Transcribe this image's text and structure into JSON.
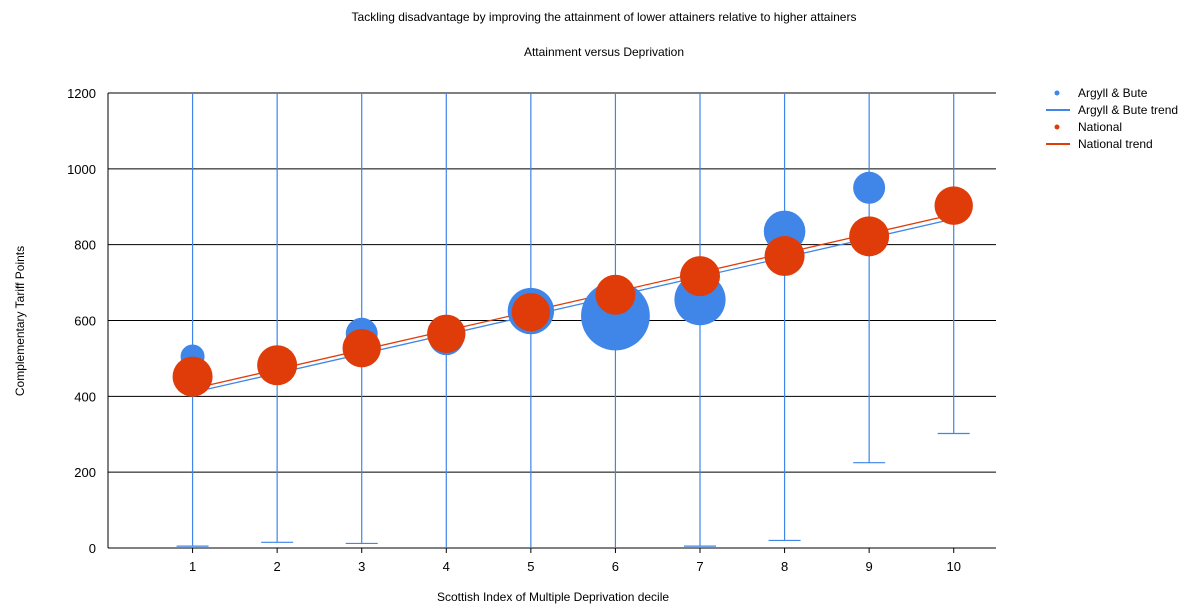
{
  "chart_data": {
    "type": "scatter",
    "title": "Tackling disadvantage by improving the attainment of lower attainers relative to higher attainers",
    "subtitle": "Attainment versus Deprivation",
    "xlabel": "Scottish Index of Multiple Deprivation decile",
    "ylabel": "Complementary Tariff Points",
    "xlim": [
      0,
      10.5
    ],
    "ylim": [
      0,
      1200
    ],
    "x_ticks": [
      1,
      2,
      3,
      4,
      5,
      6,
      7,
      8,
      9,
      10
    ],
    "y_ticks": [
      0,
      200,
      400,
      600,
      800,
      1000,
      1200
    ],
    "grid": {
      "horizontal": true,
      "vertical": false
    },
    "legend_position": "top-right",
    "colors": {
      "argyll": "#3f86e8",
      "national": "#e03c0a",
      "grid": "#000000"
    },
    "series": [
      {
        "name": "Argyll & Bute",
        "kind": "bubble",
        "color": "#3f86e8",
        "points": [
          {
            "x": 1,
            "y": 505,
            "size": 0.75,
            "low": 5,
            "high": 1200
          },
          {
            "x": 3,
            "y": 565,
            "size": 1.0,
            "low": 12,
            "high": 1200
          },
          {
            "x": 4,
            "y": 555,
            "size": 1.1,
            "low": null,
            "high": 1200
          },
          {
            "x": 5,
            "y": 625,
            "size": 1.45,
            "low": null,
            "high": 1200
          },
          {
            "x": 6,
            "y": 612,
            "size": 2.15,
            "low": null,
            "high": 1200
          },
          {
            "x": 7,
            "y": 655,
            "size": 1.6,
            "low": 5,
            "high": 1200
          },
          {
            "x": 8,
            "y": 835,
            "size": 1.3,
            "low": 20,
            "high": 1200
          },
          {
            "x": 9,
            "y": 950,
            "size": 1.0,
            "low": 225,
            "high": 1200
          },
          {
            "x": 10,
            "y": null,
            "size": 0,
            "low": 302,
            "high": 1200
          },
          {
            "x": 2,
            "y": null,
            "size": 0,
            "low": 15,
            "high": 1200
          }
        ]
      },
      {
        "name": "Argyll & Bute trend",
        "kind": "line",
        "color": "#3f86e8",
        "x": [
          1,
          10
        ],
        "y": [
          410,
          868
        ]
      },
      {
        "name": "National",
        "kind": "bubble",
        "color": "#e03c0a",
        "points": [
          {
            "x": 1,
            "y": 452,
            "size": 1.25
          },
          {
            "x": 2,
            "y": 482,
            "size": 1.25
          },
          {
            "x": 3,
            "y": 527,
            "size": 1.2
          },
          {
            "x": 4,
            "y": 565,
            "size": 1.2
          },
          {
            "x": 5,
            "y": 622,
            "size": 1.2
          },
          {
            "x": 6,
            "y": 668,
            "size": 1.25
          },
          {
            "x": 7,
            "y": 717,
            "size": 1.25
          },
          {
            "x": 8,
            "y": 770,
            "size": 1.25
          },
          {
            "x": 9,
            "y": 822,
            "size": 1.25
          },
          {
            "x": 10,
            "y": 903,
            "size": 1.2
          }
        ]
      },
      {
        "name": "National trend",
        "kind": "line",
        "color": "#e03c0a",
        "x": [
          1,
          10
        ],
        "y": [
          420,
          880
        ]
      }
    ],
    "legend": [
      {
        "label": "Argyll & Bute",
        "marker": "dot",
        "color": "#3f86e8"
      },
      {
        "label": "Argyll & Bute trend",
        "marker": "line",
        "color": "#3f86e8"
      },
      {
        "label": "National",
        "marker": "dot",
        "color": "#e03c0a"
      },
      {
        "label": "National trend",
        "marker": "line",
        "color": "#e03c0a"
      }
    ]
  }
}
